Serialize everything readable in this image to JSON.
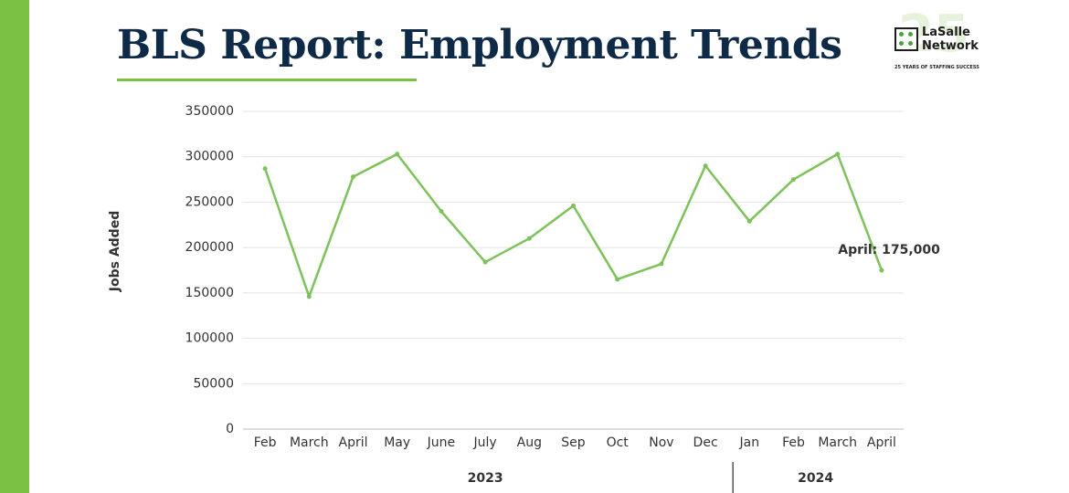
{
  "title": "BLS Report: Employment Trends",
  "logo": {
    "badge": "25",
    "name_lines": [
      "LaSalle",
      "Network"
    ],
    "tagline": "25 YEARS OF STAFFING SUCCESS"
  },
  "chart_data": {
    "type": "line",
    "y_label": "Jobs Added",
    "categories": [
      "Feb",
      "March",
      "April",
      "May",
      "June",
      "July",
      "Aug",
      "Sep",
      "Oct",
      "Nov",
      "Dec",
      "Jan",
      "Feb",
      "March",
      "April"
    ],
    "values": [
      287000,
      146000,
      278000,
      303000,
      240000,
      184000,
      210000,
      246000,
      165000,
      182000,
      290000,
      229000,
      275000,
      303000,
      175000
    ],
    "color": "#7dc25a",
    "ylim": [
      0,
      350000
    ],
    "yticks": [
      0,
      50000,
      100000,
      150000,
      200000,
      250000,
      300000,
      350000
    ],
    "grid": true,
    "groups": [
      {
        "label": "2023",
        "categories": 11
      },
      {
        "label": "2024",
        "categories": 4
      }
    ],
    "annotation": {
      "text": "April: 175,000",
      "index": 14
    }
  }
}
